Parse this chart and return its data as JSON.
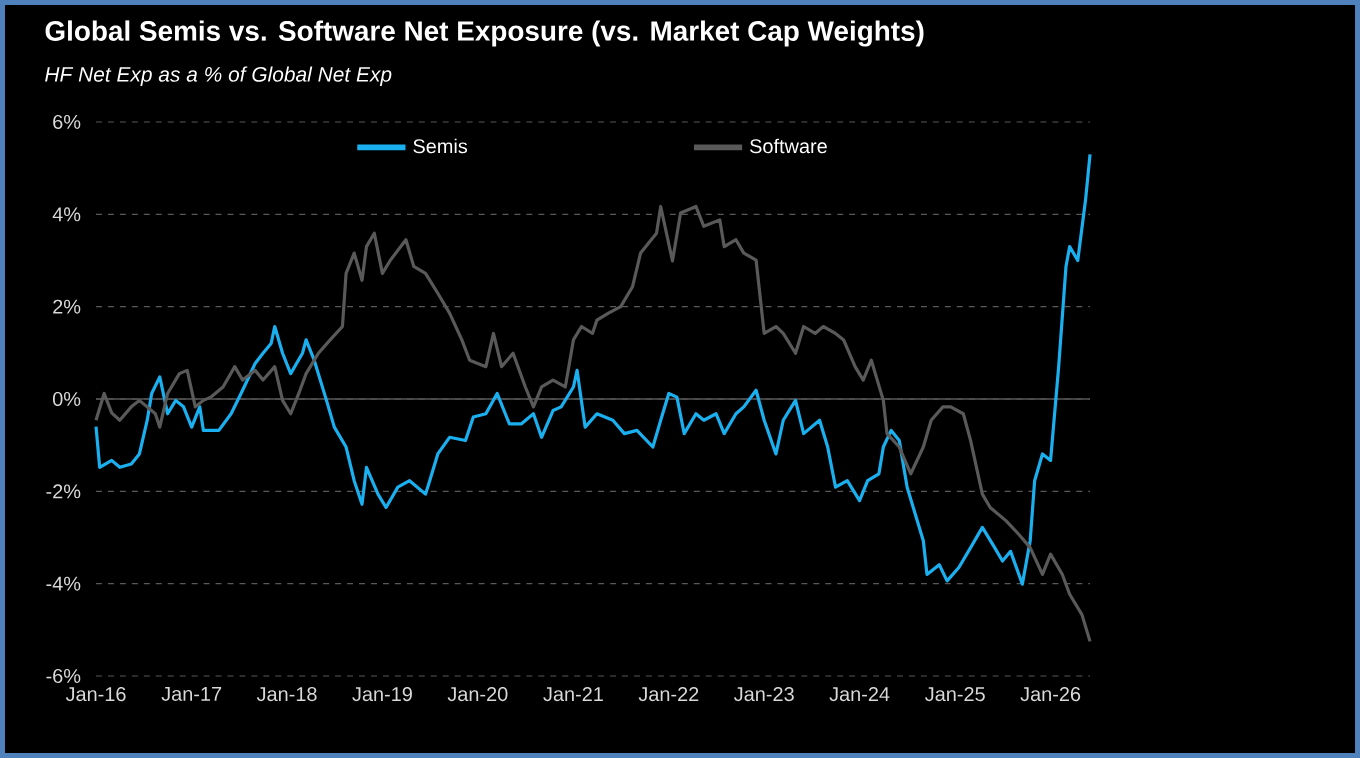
{
  "chart_data": {
    "type": "line",
    "title": "Global Semis vs. Software Net Exposure (vs. Market Cap Weights)",
    "subtitle": "HF Net Exp as a % of Global Net Exp",
    "xlim": [
      "2016-01-01",
      "2026-06-01"
    ],
    "xticks": [
      {
        "value": "2016-01-01",
        "label": "Jan-16"
      },
      {
        "value": "2017-01-01",
        "label": "Jan-17"
      },
      {
        "value": "2018-01-01",
        "label": "Jan-18"
      },
      {
        "value": "2019-01-01",
        "label": "Jan-19"
      },
      {
        "value": "2020-01-01",
        "label": "Jan-20"
      },
      {
        "value": "2021-01-01",
        "label": "Jan-21"
      },
      {
        "value": "2022-01-01",
        "label": "Jan-22"
      },
      {
        "value": "2023-01-01",
        "label": "Jan-23"
      },
      {
        "value": "2024-01-01",
        "label": "Jan-24"
      },
      {
        "value": "2025-01-01",
        "label": "Jan-25"
      },
      {
        "value": "2026-01-01",
        "label": "Jan-26"
      }
    ],
    "ylim": [
      -6,
      6
    ],
    "yticks": [
      {
        "value": -6,
        "label": "-6%"
      },
      {
        "value": -4,
        "label": "-4%"
      },
      {
        "value": -2,
        "label": "-2%"
      },
      {
        "value": 0,
        "label": "0%"
      },
      {
        "value": 2,
        "label": "2%"
      },
      {
        "value": 4,
        "label": "4%"
      },
      {
        "value": 6,
        "label": "6%"
      }
    ],
    "grid": "y",
    "legend": "top",
    "marker": "none",
    "line_style": "solid",
    "ref_lines": [
      {
        "axis": "y",
        "value": 0,
        "color": "#595959",
        "line_style": "solid"
      }
    ],
    "series": [
      {
        "name": "Semis",
        "color": "#1ab0f0",
        "x": [
          "2016-01-01",
          "2016-01-15",
          "2016-03-01",
          "2016-04-01",
          "2016-05-15",
          "2016-06-15",
          "2016-07-15",
          "2016-08-01",
          "2016-09-01",
          "2016-10-01",
          "2016-11-01",
          "2016-12-01",
          "2017-01-01",
          "2017-02-01",
          "2017-02-15",
          "2017-04-15",
          "2017-06-01",
          "2017-07-15",
          "2017-09-01",
          "2017-10-01",
          "2017-11-01",
          "2017-11-15",
          "2017-12-15",
          "2018-01-15",
          "2018-03-01",
          "2018-03-15",
          "2018-04-15",
          "2018-06-01",
          "2018-07-01",
          "2018-08-15",
          "2018-09-15",
          "2018-10-15",
          "2018-11-01",
          "2018-12-15",
          "2019-01-15",
          "2019-03-01",
          "2019-04-15",
          "2019-06-15",
          "2019-07-01",
          "2019-08-01",
          "2019-09-15",
          "2019-11-15",
          "2019-12-15",
          "2020-02-01",
          "2020-03-15",
          "2020-05-01",
          "2020-06-15",
          "2020-08-01",
          "2020-09-01",
          "2020-10-15",
          "2020-11-15",
          "2021-01-01",
          "2021-01-15",
          "2021-02-15",
          "2021-04-01",
          "2021-06-01",
          "2021-07-15",
          "2021-09-01",
          "2021-11-01",
          "2021-12-01",
          "2022-01-01",
          "2022-02-01",
          "2022-03-01",
          "2022-04-15",
          "2022-05-15",
          "2022-07-01",
          "2022-08-01",
          "2022-09-15",
          "2022-10-15",
          "2022-12-01",
          "2023-01-01",
          "2023-02-15",
          "2023-03-15",
          "2023-05-01",
          "2023-06-01",
          "2023-08-01",
          "2023-09-01",
          "2023-10-01",
          "2023-11-15",
          "2024-01-01",
          "2024-02-01",
          "2024-03-15",
          "2024-04-01",
          "2024-05-01",
          "2024-06-01",
          "2024-07-01",
          "2024-08-01",
          "2024-09-01",
          "2024-09-15",
          "2024-11-01",
          "2024-12-01",
          "2025-01-15",
          "2025-03-01",
          "2025-04-15",
          "2025-06-01",
          "2025-07-01",
          "2025-08-01",
          "2025-09-15",
          "2025-10-15",
          "2025-11-01",
          "2025-12-01",
          "2026-01-01",
          "2026-02-01",
          "2026-03-01",
          "2026-03-15",
          "2026-04-15",
          "2026-05-15",
          "2026-06-01"
        ],
        "values": [
          -0.6,
          -1.48,
          -1.33,
          -1.48,
          -1.41,
          -1.19,
          -0.46,
          0.12,
          0.48,
          -0.32,
          -0.03,
          -0.17,
          -0.61,
          -0.17,
          -0.68,
          -0.68,
          -0.32,
          0.19,
          0.77,
          0.99,
          1.2,
          1.57,
          0.99,
          0.55,
          0.99,
          1.28,
          0.84,
          -0.03,
          -0.61,
          -1.04,
          -1.77,
          -2.28,
          -1.48,
          -2.06,
          -2.35,
          -1.91,
          -1.77,
          -2.06,
          -1.77,
          -1.19,
          -0.83,
          -0.9,
          -0.39,
          -0.32,
          0.12,
          -0.54,
          -0.54,
          -0.32,
          -0.83,
          -0.25,
          -0.17,
          0.26,
          0.62,
          -0.61,
          -0.32,
          -0.46,
          -0.75,
          -0.68,
          -1.04,
          -0.46,
          0.12,
          0.04,
          -0.75,
          -0.32,
          -0.46,
          -0.32,
          -0.75,
          -0.32,
          -0.17,
          0.19,
          -0.46,
          -1.19,
          -0.46,
          -0.03,
          -0.75,
          -0.46,
          -1.04,
          -1.91,
          -1.77,
          -2.2,
          -1.77,
          -1.62,
          -1.04,
          -0.68,
          -0.9,
          -1.91,
          -2.49,
          -3.07,
          -3.8,
          -3.59,
          -3.94,
          -3.65,
          -3.22,
          -2.78,
          -3.22,
          -3.51,
          -3.3,
          -4.01,
          -3.07,
          -1.77,
          -1.19,
          -1.33,
          0.7,
          2.87,
          3.3,
          3.0,
          4.32,
          5.3
        ]
      },
      {
        "name": "Software",
        "color": "#595959",
        "x": [
          "2016-01-01",
          "2016-02-01",
          "2016-03-01",
          "2016-04-01",
          "2016-05-15",
          "2016-06-15",
          "2016-08-15",
          "2016-09-01",
          "2016-10-01",
          "2016-11-15",
          "2016-12-15",
          "2017-01-15",
          "2017-02-15",
          "2017-03-15",
          "2017-05-01",
          "2017-06-15",
          "2017-07-15",
          "2017-09-01",
          "2017-10-01",
          "2017-11-15",
          "2017-12-15",
          "2018-01-15",
          "2018-02-15",
          "2018-03-15",
          "2018-05-01",
          "2018-06-15",
          "2018-08-01",
          "2018-08-15",
          "2018-09-15",
          "2018-10-15",
          "2018-11-01",
          "2018-12-01",
          "2019-01-01",
          "2019-02-01",
          "2019-04-01",
          "2019-05-01",
          "2019-06-15",
          "2019-08-01",
          "2019-09-15",
          "2019-11-01",
          "2019-12-01",
          "2020-02-01",
          "2020-03-01",
          "2020-04-01",
          "2020-05-15",
          "2020-07-01",
          "2020-08-01",
          "2020-09-01",
          "2020-10-15",
          "2020-12-01",
          "2021-01-01",
          "2021-02-01",
          "2021-03-15",
          "2021-04-01",
          "2021-05-15",
          "2021-07-01",
          "2021-08-15",
          "2021-09-15",
          "2021-11-15",
          "2021-12-01",
          "2022-01-15",
          "2022-02-15",
          "2022-04-15",
          "2022-05-15",
          "2022-07-15",
          "2022-08-01",
          "2022-09-15",
          "2022-10-15",
          "2022-12-01",
          "2023-01-01",
          "2023-02-15",
          "2023-03-15",
          "2023-05-01",
          "2023-06-01",
          "2023-07-15",
          "2023-08-15",
          "2023-10-01",
          "2023-11-01",
          "2023-12-15",
          "2024-01-15",
          "2024-02-15",
          "2024-04-01",
          "2024-04-15",
          "2024-06-01",
          "2024-07-15",
          "2024-09-01",
          "2024-10-01",
          "2024-11-15",
          "2024-12-15",
          "2025-02-01",
          "2025-03-01",
          "2025-04-15",
          "2025-05-15",
          "2025-07-15",
          "2025-09-01",
          "2025-10-15",
          "2025-12-01",
          "2026-01-01",
          "2026-02-15",
          "2026-03-15",
          "2026-05-01",
          "2026-06-01"
        ],
        "values": [
          -0.46,
          0.12,
          -0.3,
          -0.46,
          -0.17,
          -0.03,
          -0.32,
          -0.61,
          0.12,
          0.55,
          0.62,
          -0.17,
          -0.03,
          0.04,
          0.26,
          0.7,
          0.41,
          0.62,
          0.41,
          0.7,
          -0.03,
          -0.32,
          0.12,
          0.55,
          0.99,
          1.28,
          1.57,
          2.72,
          3.16,
          2.57,
          3.3,
          3.59,
          2.72,
          3.01,
          3.45,
          2.87,
          2.72,
          2.29,
          1.86,
          1.28,
          0.84,
          0.7,
          1.42,
          0.7,
          0.99,
          0.26,
          -0.17,
          0.26,
          0.41,
          0.26,
          1.28,
          1.57,
          1.42,
          1.71,
          1.86,
          2.0,
          2.43,
          3.16,
          3.59,
          4.17,
          2.99,
          4.03,
          4.17,
          3.74,
          3.88,
          3.3,
          3.45,
          3.16,
          3.01,
          1.42,
          1.57,
          1.42,
          0.99,
          1.57,
          1.42,
          1.57,
          1.42,
          1.28,
          0.7,
          0.41,
          0.84,
          -0.03,
          -0.75,
          -1.04,
          -1.62,
          -1.04,
          -0.46,
          -0.17,
          -0.17,
          -0.32,
          -0.9,
          -2.06,
          -2.35,
          -2.64,
          -2.93,
          -3.22,
          -3.8,
          -3.36,
          -3.8,
          -4.23,
          -4.67,
          -5.25
        ]
      }
    ]
  }
}
